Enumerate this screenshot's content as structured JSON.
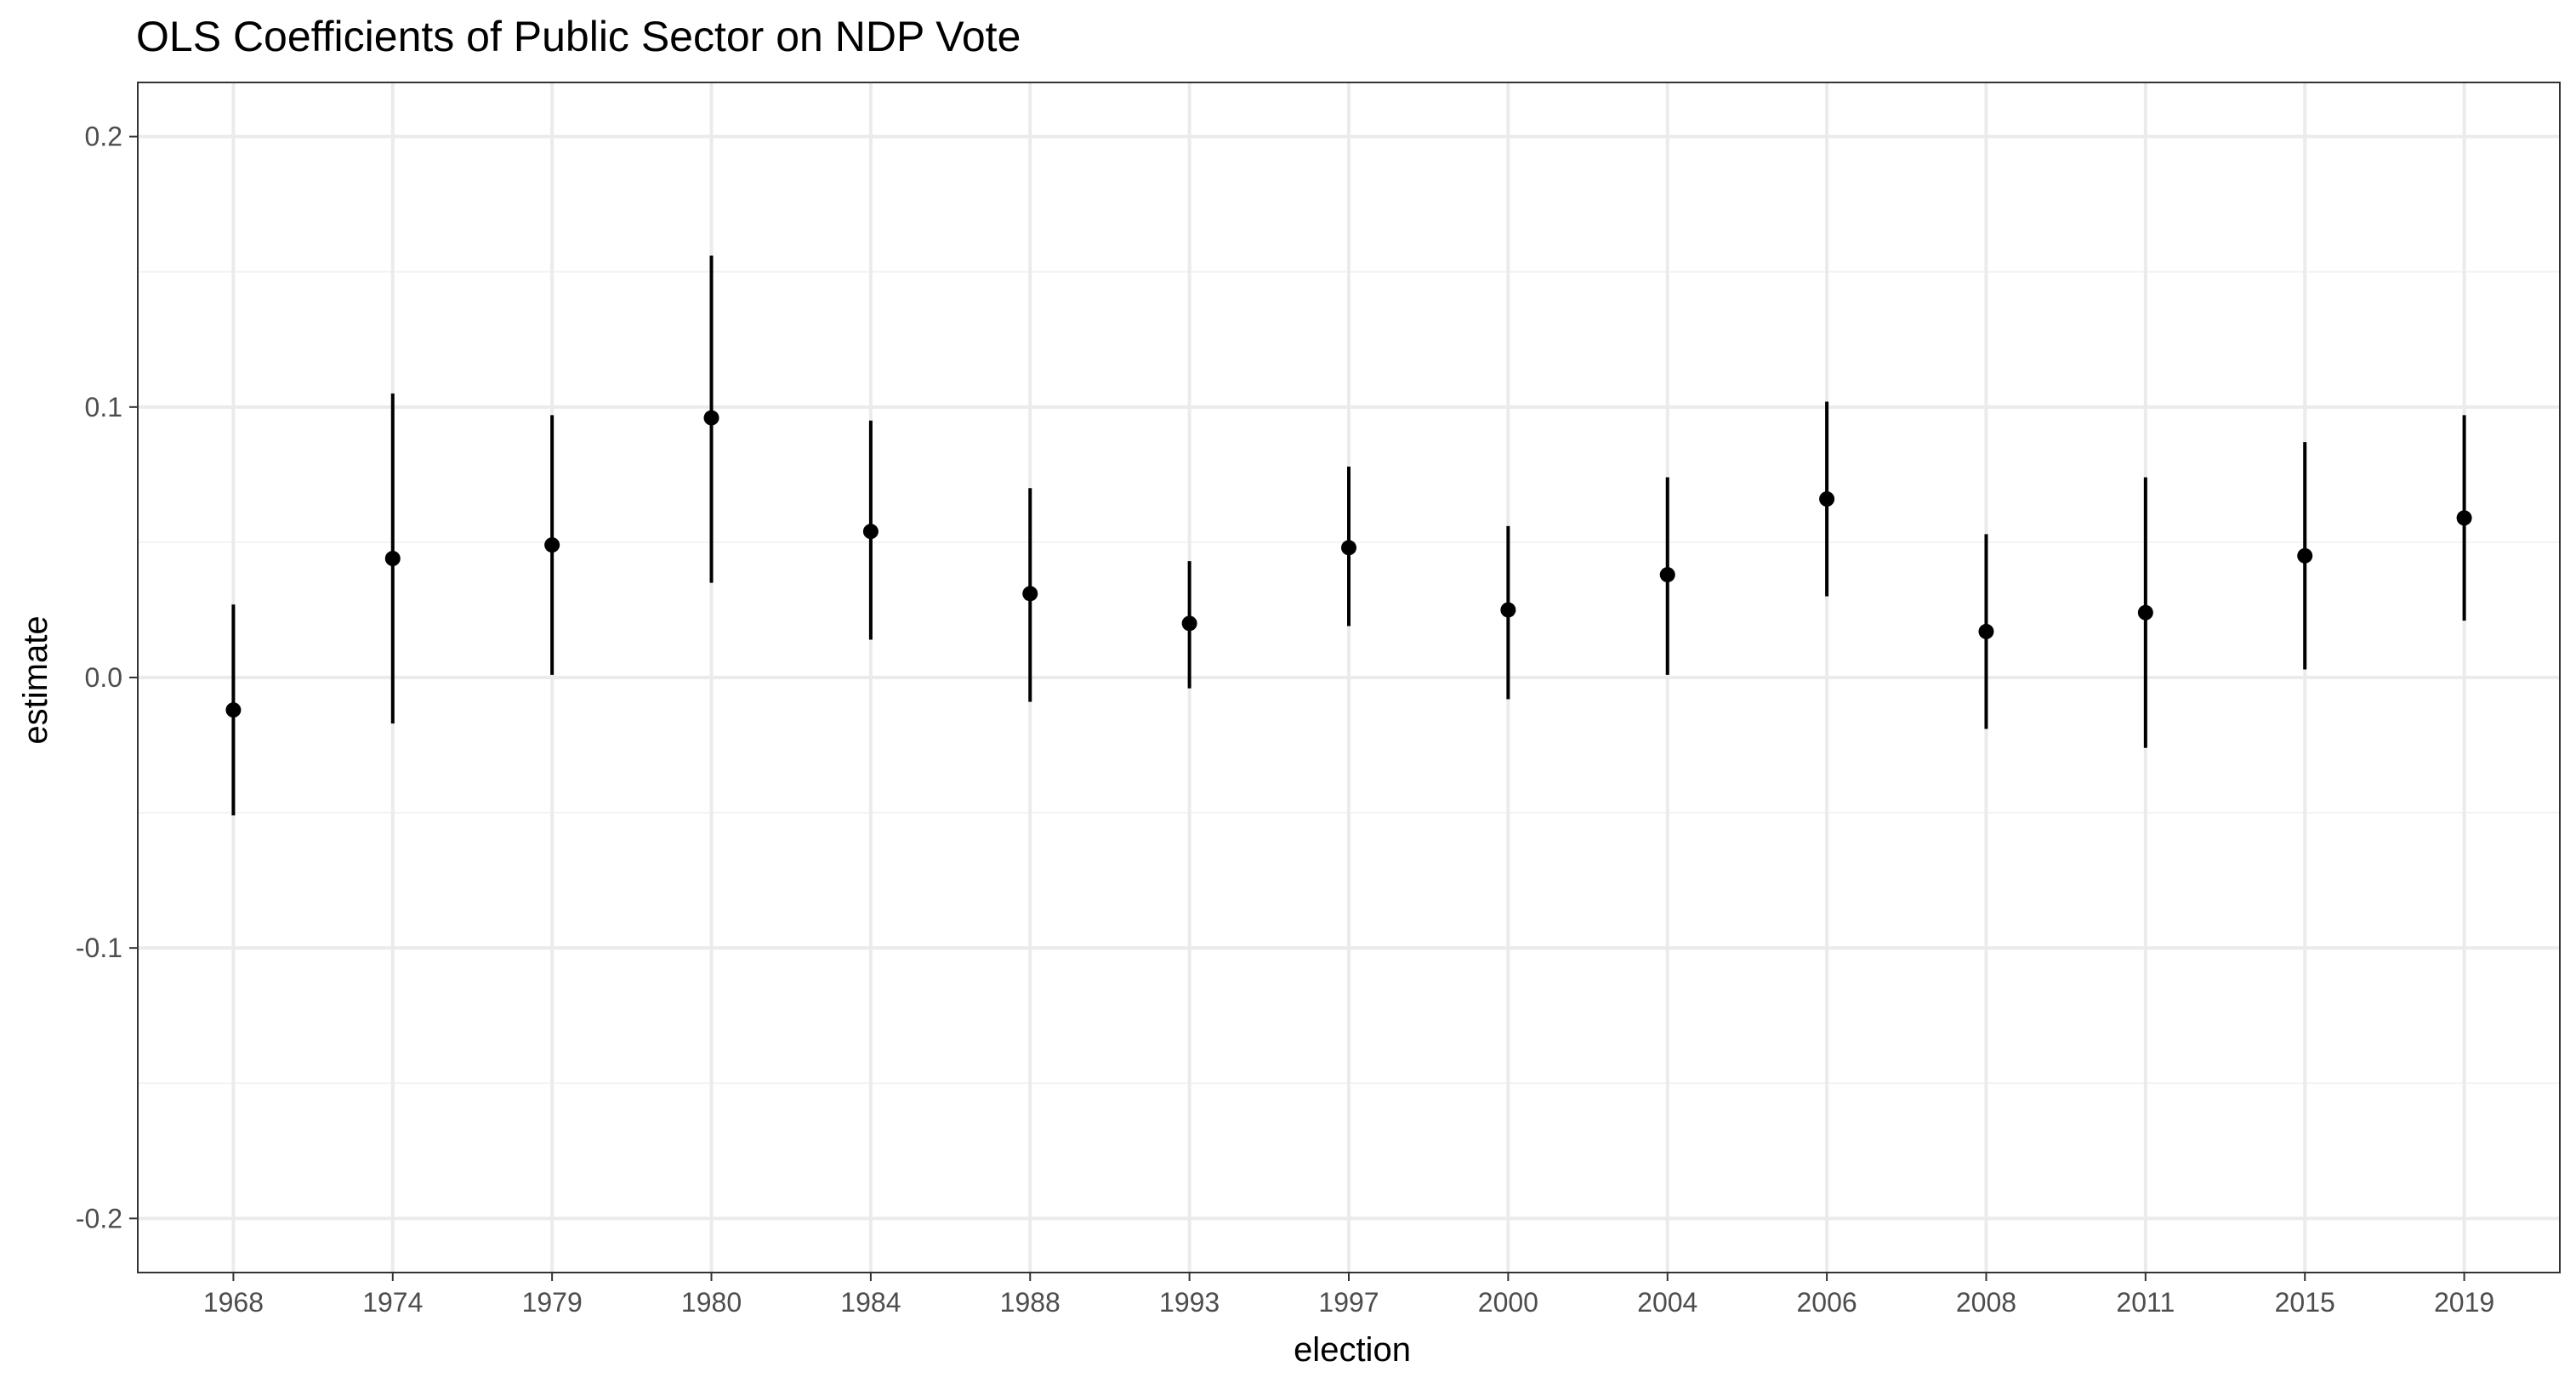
{
  "chart_data": {
    "type": "scatter",
    "title": "OLS Coefficients of Public Sector on NDP Vote",
    "xlabel": "election",
    "ylabel": "estimate",
    "ylim": [
      -0.22,
      0.22
    ],
    "yticks": [
      -0.2,
      -0.1,
      0.0,
      0.1,
      0.2
    ],
    "ytick_labels": [
      "-0.2",
      "-0.1",
      "0.0",
      "0.1",
      "0.2"
    ],
    "grid": true,
    "legend": "none",
    "categories": [
      "1968",
      "1974",
      "1979",
      "1980",
      "1984",
      "1988",
      "1993",
      "1997",
      "2000",
      "2004",
      "2006",
      "2008",
      "2011",
      "2015",
      "2019"
    ],
    "series": [
      {
        "estimate": [
          -0.012,
          0.044,
          0.049,
          0.096,
          0.054,
          0.031,
          0.02,
          0.048,
          0.025,
          0.038,
          0.066,
          0.017,
          0.024,
          0.045,
          0.059
        ],
        "conf_low": [
          -0.051,
          -0.017,
          0.001,
          0.035,
          0.014,
          -0.009,
          -0.004,
          0.019,
          -0.008,
          0.001,
          0.03,
          -0.019,
          -0.026,
          0.003,
          0.021
        ],
        "conf_high": [
          0.027,
          0.105,
          0.097,
          0.156,
          0.095,
          0.07,
          0.043,
          0.078,
          0.056,
          0.074,
          0.102,
          0.053,
          0.074,
          0.087,
          0.097
        ]
      }
    ],
    "colors": {
      "marks": "#000000",
      "panel_border": "#333333",
      "grid_major": "#ebebeb",
      "grid_minor": "#f3f3f3",
      "tick_text": "#4d4d4d",
      "title_text": "#000000"
    }
  }
}
